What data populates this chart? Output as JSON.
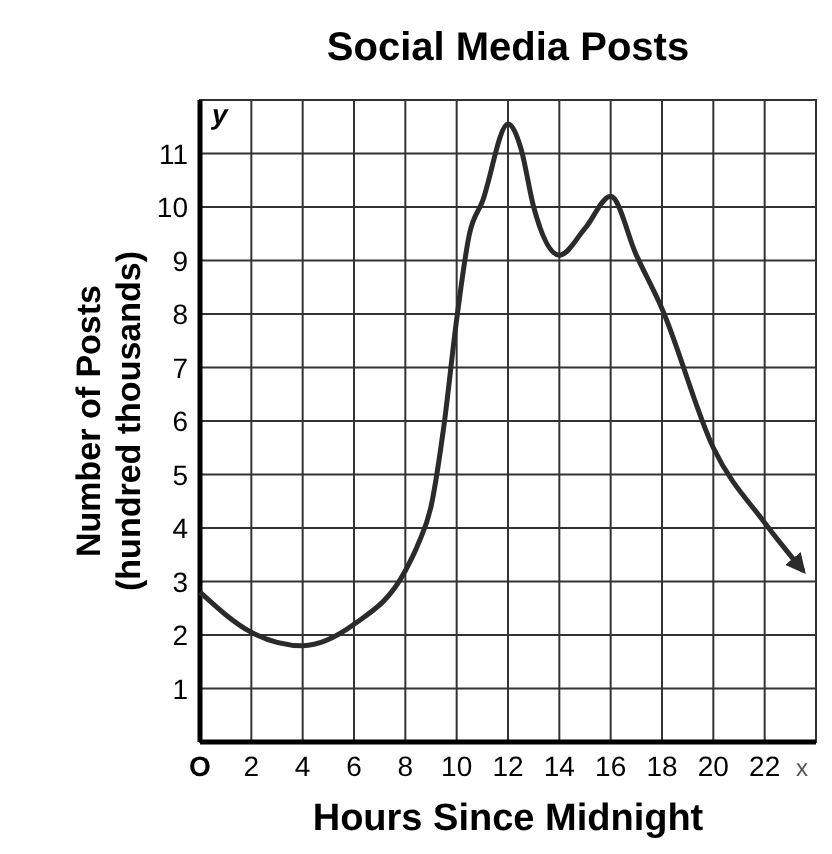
{
  "chart_data": {
    "type": "line",
    "title": "Social Media Posts",
    "xlabel": "Hours Since Midnight",
    "ylabel": "Number of Posts\n(hundred thousands)",
    "annotations": [
      "y",
      "x"
    ],
    "xlim": [
      0,
      24
    ],
    "xticks": [
      {
        "value": 0,
        "label": "O"
      },
      2,
      4,
      6,
      8,
      10,
      12,
      14,
      16,
      18,
      20,
      22
    ],
    "ylim": [
      0,
      12
    ],
    "yticks": [
      1,
      2,
      3,
      4,
      5,
      6,
      7,
      8,
      9,
      10,
      11
    ],
    "grid": true,
    "marker": "none",
    "line_style": "solid",
    "series": [
      {
        "color": "#2b2b2b",
        "x": [
          0,
          2,
          4,
          6,
          8,
          8.5,
          9,
          9.5,
          10,
          10.5,
          11,
          12,
          12.5,
          13,
          14,
          15,
          16,
          17,
          18,
          20,
          22,
          23.5
        ],
        "values": [
          2.8,
          2.05,
          1.8,
          2.2,
          3.2,
          3.7,
          4.4,
          5.9,
          7.9,
          9.5,
          10.1,
          11.55,
          11.1,
          10,
          9.1,
          9.6,
          10.2,
          9.1,
          8.1,
          5.5,
          4.1,
          3.2
        ]
      }
    ]
  }
}
